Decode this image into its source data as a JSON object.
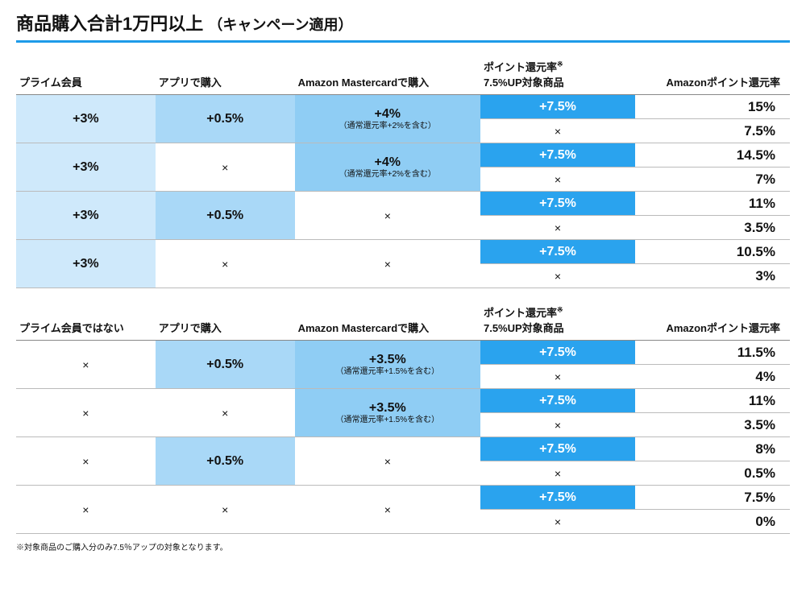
{
  "colors": {
    "title_underline": "#1e9be9",
    "pale1": "#cfe9fb",
    "pale2": "#a9d8f7",
    "pale3": "#8fcdf4",
    "blue": "#2aa3ee",
    "white": "#ffffff"
  },
  "title": {
    "main": "商品購入合計1万円以上",
    "sub": "（キャンペーン適用）"
  },
  "headers": {
    "prime_yes": "プライム会員",
    "prime_no": "プライム会員ではない",
    "app": "アプリで購入",
    "mastercard": "Amazon Mastercardで購入",
    "point_up": "ポイント還元率",
    "point_up_sub": "7.5%UP対象商品",
    "result": "Amazonポイント還元率",
    "star": "※"
  },
  "notes": {
    "mc_sub_prime": "（通常還元率+2%を含む）",
    "mc_sub_nonprime": "（通常還元率+1.5%を含む）"
  },
  "x": "×",
  "table1": {
    "rows": [
      {
        "prime": "+3%",
        "app": "+0.5%",
        "mc": "+4%",
        "mc_note": true,
        "up": [
          "+7.5%",
          "×"
        ],
        "res": [
          "15%",
          "7.5%"
        ]
      },
      {
        "prime": "+3%",
        "app": "×",
        "mc": "+4%",
        "mc_note": true,
        "up": [
          "+7.5%",
          "×"
        ],
        "res": [
          "14.5%",
          "7%"
        ]
      },
      {
        "prime": "+3%",
        "app": "+0.5%",
        "mc": "×",
        "mc_note": false,
        "up": [
          "+7.5%",
          "×"
        ],
        "res": [
          "11%",
          "3.5%"
        ]
      },
      {
        "prime": "+3%",
        "app": "×",
        "mc": "×",
        "mc_note": false,
        "up": [
          "+7.5%",
          "×"
        ],
        "res": [
          "10.5%",
          "3%"
        ]
      }
    ]
  },
  "table2": {
    "rows": [
      {
        "prime": "×",
        "app": "+0.5%",
        "mc": "+3.5%",
        "mc_note": true,
        "up": [
          "+7.5%",
          "×"
        ],
        "res": [
          "11.5%",
          "4%"
        ]
      },
      {
        "prime": "×",
        "app": "×",
        "mc": "+3.5%",
        "mc_note": true,
        "up": [
          "+7.5%",
          "×"
        ],
        "res": [
          "11%",
          "3.5%"
        ]
      },
      {
        "prime": "×",
        "app": "+0.5%",
        "mc": "×",
        "mc_note": false,
        "up": [
          "+7.5%",
          "×"
        ],
        "res": [
          "8%",
          "0.5%"
        ]
      },
      {
        "prime": "×",
        "app": "×",
        "mc": "×",
        "mc_note": false,
        "up": [
          "+7.5%",
          "×"
        ],
        "res": [
          "7.5%",
          "0%"
        ]
      }
    ]
  },
  "footnote": "※対象商品のご購入分のみ7.5％アップの対象となります。"
}
